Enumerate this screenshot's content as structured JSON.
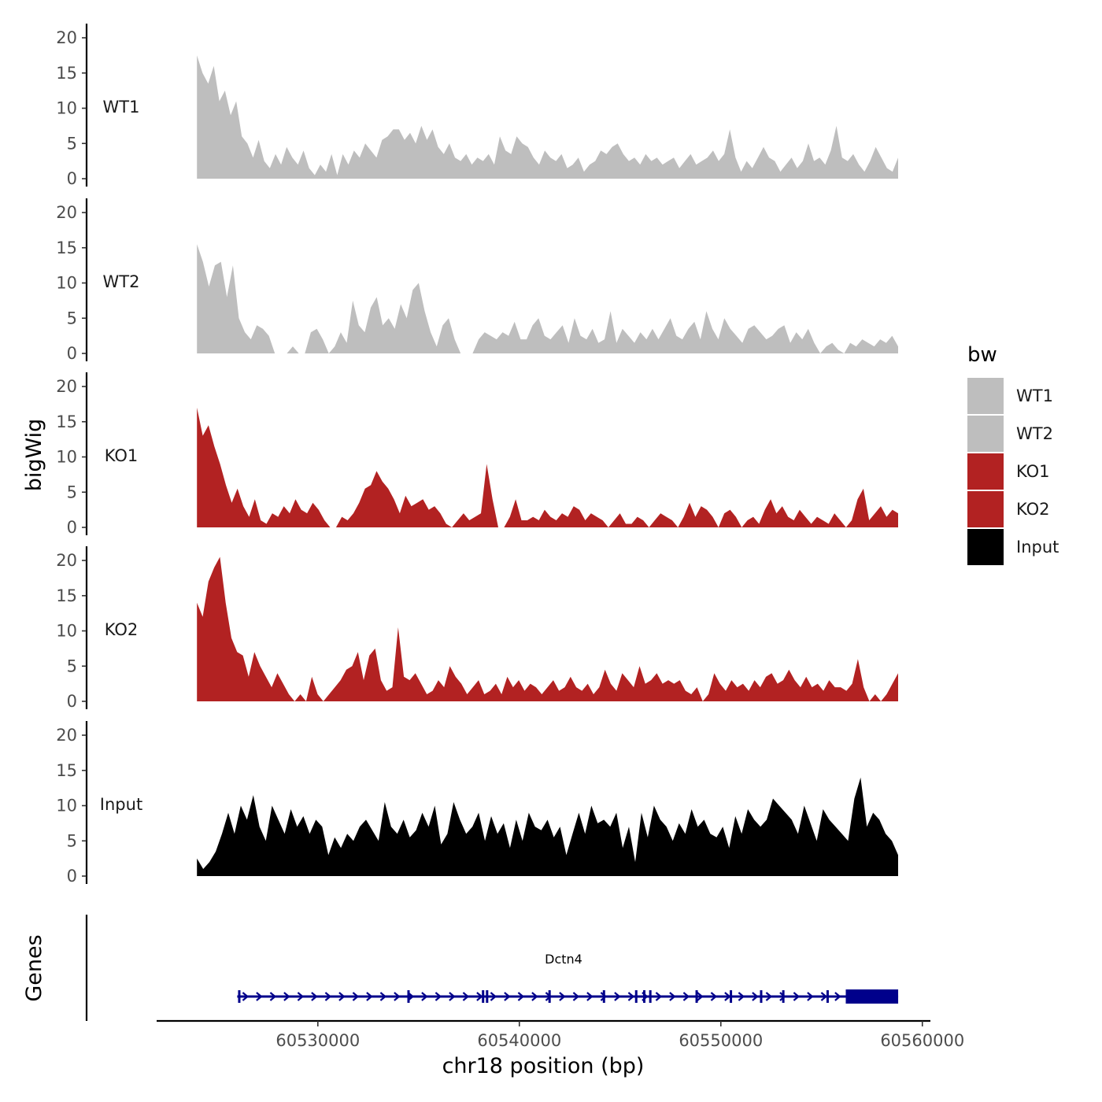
{
  "chart_data": {
    "type": "area",
    "ylabel": "bigWig",
    "xlabel": "chr18 position (bp)",
    "ylim": [
      0,
      21
    ],
    "yticks": [
      0,
      5,
      10,
      15,
      20
    ],
    "xlim": [
      60522000,
      60560400
    ],
    "xticks": [
      60530000,
      60540000,
      60550000,
      60560000
    ],
    "xtick_labels": [
      "60530000",
      "60540000",
      "60550000",
      "60560000"
    ],
    "data_range": [
      60524000,
      60558800
    ],
    "legend": {
      "title": "bw",
      "entries": [
        {
          "label": "WT1",
          "color": "#bebebe"
        },
        {
          "label": "WT2",
          "color": "#bebebe"
        },
        {
          "label": "KO1",
          "color": "#b22222"
        },
        {
          "label": "KO2",
          "color": "#b22222"
        },
        {
          "label": "Input",
          "color": "#000000"
        }
      ]
    },
    "series": [
      {
        "name": "WT1",
        "color": "#bebebe",
        "values": [
          17.5,
          15,
          13.5,
          16,
          11,
          12.5,
          9,
          11,
          6,
          5,
          3,
          5.5,
          2.5,
          1.5,
          3.5,
          2,
          4.5,
          3,
          2,
          4,
          1.5,
          0.5,
          2,
          1,
          3.5,
          0.5,
          3.5,
          2,
          4,
          3,
          5,
          4,
          3,
          5.5,
          6,
          7,
          7,
          5.5,
          6.5,
          5,
          7.5,
          5.5,
          7,
          4.5,
          3.5,
          5,
          3,
          2.5,
          3.5,
          2,
          3,
          2.5,
          3.5,
          2,
          6,
          4,
          3.5,
          6,
          5,
          4.5,
          3,
          2,
          4,
          3,
          2.5,
          3.5,
          1.5,
          2,
          3,
          1,
          2,
          2.5,
          4,
          3.5,
          4.5,
          5,
          3.5,
          2.5,
          3,
          2,
          3.5,
          2.5,
          3,
          2,
          2.5,
          3,
          1.5,
          2.5,
          3.5,
          2,
          2.5,
          3,
          4,
          2.5,
          3.5,
          7,
          3,
          1,
          2.5,
          1.5,
          3,
          4.5,
          3,
          2.5,
          1,
          2,
          3,
          1.5,
          2.5,
          5,
          2.5,
          3,
          2,
          4,
          7.5,
          3,
          2.5,
          3.5,
          2,
          1,
          2.5,
          4.5,
          3,
          1.5,
          1,
          3
        ]
      },
      {
        "name": "WT2",
        "color": "#bebebe",
        "values": [
          15.5,
          13,
          9.5,
          12.5,
          13,
          8,
          12.5,
          5,
          3,
          2,
          4,
          3.5,
          2.5,
          0,
          0,
          0,
          1,
          0,
          0,
          3,
          3.5,
          2,
          0,
          1,
          3,
          1.5,
          7.5,
          4,
          3,
          6.5,
          8,
          4,
          5,
          3.5,
          7,
          5,
          9,
          10,
          6,
          3,
          1,
          4,
          5,
          2,
          0,
          0,
          0,
          2,
          3,
          2.5,
          2,
          3,
          2.5,
          4.5,
          2,
          2,
          4,
          5,
          2.5,
          2,
          3,
          4,
          1.5,
          5,
          2.5,
          2,
          3.5,
          1.5,
          2,
          6,
          1.5,
          3.5,
          2.5,
          1.5,
          3,
          2,
          3.5,
          2,
          3.5,
          5,
          2.5,
          2,
          3.5,
          4.5,
          2,
          6,
          3.5,
          2,
          5,
          3.5,
          2.5,
          1.5,
          3.5,
          4,
          3,
          2,
          2.5,
          3.5,
          4,
          1.5,
          3,
          2,
          3.5,
          1.5,
          0,
          1,
          1.5,
          0.5,
          0,
          1.5,
          1,
          2,
          1.5,
          1,
          2,
          1.5,
          2.5,
          1
        ]
      },
      {
        "name": "KO1",
        "color": "#b22222",
        "values": [
          17,
          13,
          14.5,
          11.5,
          9,
          6,
          3.5,
          5.5,
          3,
          1.5,
          4,
          1,
          0.5,
          2,
          1.5,
          3,
          2,
          4,
          2.5,
          2,
          3.5,
          2.5,
          1,
          0,
          0,
          1.5,
          1,
          2,
          3.5,
          5.5,
          6,
          8,
          6.5,
          5.5,
          4,
          2,
          4.5,
          3,
          3.5,
          4,
          2.5,
          3,
          2,
          0.5,
          0,
          1,
          2,
          1,
          1.5,
          2,
          9,
          4,
          0,
          0,
          1.5,
          4,
          1,
          1,
          1.5,
          1,
          2.5,
          1.5,
          1,
          2,
          1.5,
          3,
          2.5,
          1,
          2,
          1.5,
          1,
          0,
          1,
          2,
          0.5,
          0.5,
          1.5,
          1,
          0,
          1,
          2,
          1.5,
          1,
          0,
          1.5,
          3.5,
          1.5,
          3,
          2.5,
          1.5,
          0,
          2,
          2.5,
          1.5,
          0,
          1,
          1.5,
          0.5,
          2.5,
          4,
          2,
          3,
          1.5,
          1,
          2.5,
          1.5,
          0.5,
          1.5,
          1,
          0.5,
          2,
          1,
          0,
          1,
          4,
          5.5,
          1,
          2,
          3,
          1.5,
          2.5,
          2
        ]
      },
      {
        "name": "KO2",
        "color": "#b22222",
        "values": [
          14,
          12,
          17,
          19,
          20.5,
          14,
          9,
          7,
          6.5,
          3.5,
          7,
          5,
          3.5,
          2,
          4,
          2.5,
          1,
          0,
          1,
          0,
          3.5,
          1,
          0,
          1,
          2,
          3,
          4.5,
          5,
          7,
          3,
          6.5,
          7.5,
          3,
          1.5,
          2,
          10.5,
          3.5,
          3,
          4,
          2.5,
          1,
          1.5,
          3,
          2,
          5,
          3.5,
          2.5,
          1,
          2,
          3,
          1,
          1.5,
          2.5,
          1,
          3.5,
          2,
          3,
          1.5,
          2.5,
          2,
          1,
          2,
          3,
          1.5,
          2,
          3.5,
          2,
          1.5,
          2.5,
          1,
          2,
          4.5,
          2.5,
          1.5,
          4,
          3,
          2,
          5,
          2.5,
          3,
          4,
          2.5,
          3,
          2.5,
          3,
          1.5,
          1,
          2,
          0,
          1,
          4,
          2.5,
          1.5,
          3,
          2,
          2.5,
          1.5,
          3,
          2,
          3.5,
          4,
          2.5,
          3,
          4.5,
          3,
          2,
          3.5,
          2,
          2.5,
          1.5,
          3,
          2,
          2,
          1.5,
          2.5,
          6,
          2,
          0,
          1,
          0,
          1,
          2.5,
          4
        ]
      },
      {
        "name": "Input",
        "color": "#000000",
        "values": [
          2.5,
          1,
          2,
          3.5,
          6,
          9,
          6,
          10,
          8,
          11.5,
          7,
          5,
          10,
          8,
          6,
          9.5,
          7,
          8.5,
          6,
          8,
          7,
          3,
          5.5,
          4,
          6,
          5,
          7,
          8,
          6.5,
          5,
          10.5,
          7,
          6,
          8,
          5.5,
          6.5,
          9,
          7,
          10,
          4.5,
          6,
          10.5,
          8,
          6,
          7,
          9,
          5,
          8.5,
          6,
          7.5,
          4,
          8,
          5,
          9,
          7,
          6.5,
          8,
          5.5,
          7,
          3,
          6,
          9,
          6,
          10,
          7.5,
          8,
          7,
          9,
          4,
          7,
          2,
          9,
          5.5,
          10,
          8,
          7,
          5,
          7.5,
          6,
          9.5,
          7,
          8,
          6,
          5.5,
          7,
          4,
          8.5,
          6,
          9.5,
          8,
          7,
          8,
          11,
          10,
          9,
          8,
          6,
          10,
          7.5,
          5,
          9.5,
          8,
          7,
          6,
          5,
          11,
          14,
          7,
          9,
          8,
          6,
          5,
          3
        ]
      }
    ]
  },
  "tracks": {
    "labels": [
      "WT1",
      "WT2",
      "KO1",
      "KO2",
      "Input"
    ],
    "tick_labels": [
      "20",
      "15",
      "10",
      "5",
      "0"
    ]
  },
  "genes": {
    "track_label": "Genes",
    "gene_name": "Dctn4",
    "color": "#00008b",
    "start": 60526000,
    "end": 60558800,
    "utr3_start": 60556200,
    "exons": [
      60526100,
      60534500,
      60538200,
      60538400,
      60541500,
      60544200,
      60545800,
      60546200,
      60546500,
      60548800,
      60550500,
      60552000,
      60553100,
      60555300
    ]
  }
}
